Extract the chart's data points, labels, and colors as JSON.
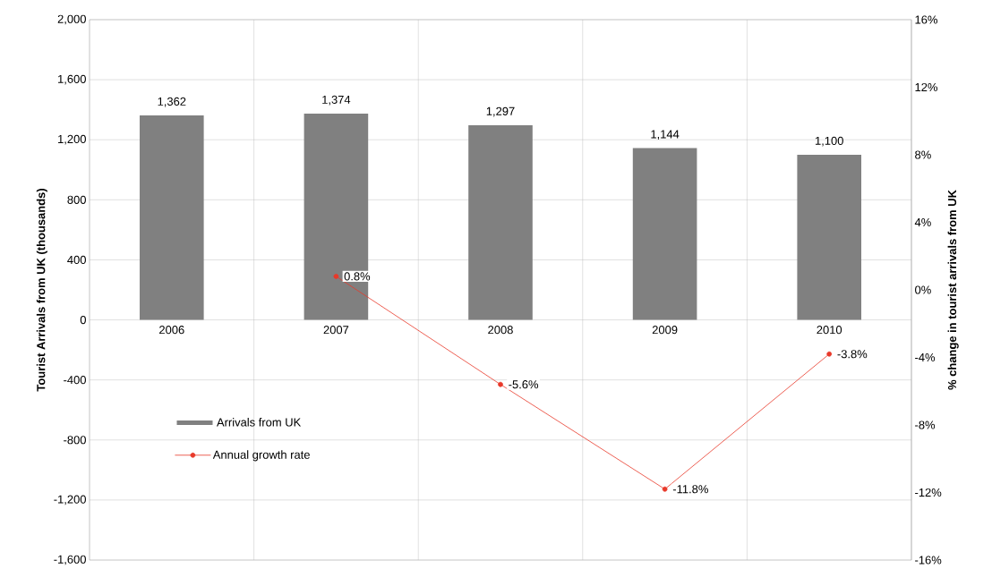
{
  "chart_data": {
    "type": "bar",
    "categories": [
      "2006",
      "2007",
      "2008",
      "2009",
      "2010"
    ],
    "ylabel": "Tourist Arrivals from UK (thousands)",
    "y2label": "% change in tourist arrivals from UK",
    "series": [
      {
        "name": "Arrivals from UK",
        "color": "#808080",
        "values": [
          1362,
          1374,
          1297,
          1144,
          1100
        ],
        "value_labels": [
          "1,362",
          "1,374",
          "1,297",
          "1,144",
          "1,100"
        ]
      },
      {
        "name": "Annual growth rate",
        "type": "line",
        "axis": "y2",
        "color": "#e8392a",
        "marker": "circle",
        "values": [
          null,
          0.8,
          -5.6,
          -11.8,
          -3.8
        ],
        "value_labels": [
          null,
          "0.8%",
          "-5.6%",
          "-11.8%",
          "-3.8%"
        ]
      }
    ],
    "ylim": [
      -1600,
      2000
    ],
    "yticks": [
      {
        "value": -1600,
        "label": "-1,600"
      },
      {
        "value": -1200,
        "label": "-1,200"
      },
      {
        "value": -800,
        "label": "-800"
      },
      {
        "value": -400,
        "label": "-400"
      },
      0,
      {
        "value": 400,
        "label": "400"
      },
      {
        "value": 800,
        "label": "800"
      },
      {
        "value": 1200,
        "label": "1,200"
      },
      {
        "value": 1600,
        "label": "1,600"
      },
      {
        "value": 2000,
        "label": "2,000"
      }
    ],
    "y2lim": [
      -16,
      16
    ],
    "y2ticks": [
      {
        "value": -16,
        "label": "-16%"
      },
      {
        "value": -12,
        "label": "-12%"
      },
      {
        "value": -8,
        "label": "-8%"
      },
      {
        "value": -4,
        "label": "-4%"
      },
      {
        "value": 0,
        "label": "0%"
      },
      {
        "value": 4,
        "label": "4%"
      },
      {
        "value": 8,
        "label": "8%"
      },
      {
        "value": 12,
        "label": "12%"
      },
      {
        "value": 16,
        "label": "16%"
      }
    ],
    "grid": true,
    "legend": "bottom left"
  }
}
